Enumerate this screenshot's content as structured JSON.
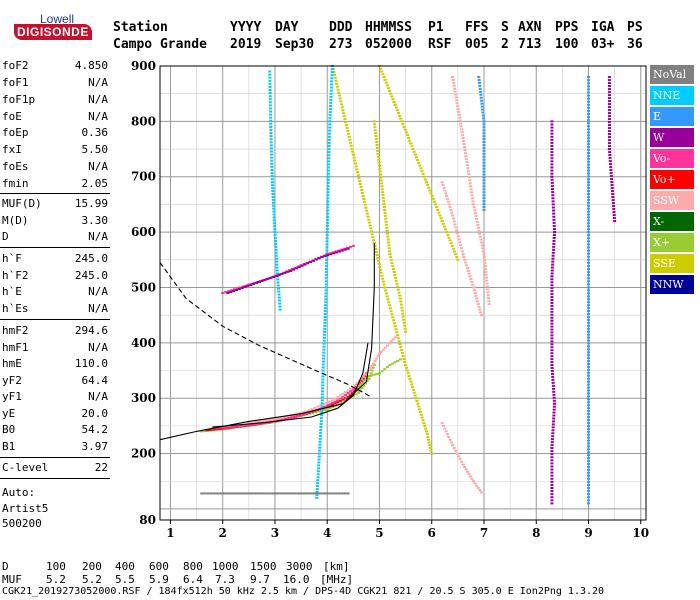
{
  "logo": {
    "top": "Lowell",
    "main": "DIGISONDE"
  },
  "header": {
    "col_labels": [
      "Station",
      "YYYY",
      "DAY",
      "DDD",
      "HHMMSS",
      "P1",
      "FFS",
      "S",
      "AXN",
      "PPS",
      "IGA",
      "PS"
    ],
    "col_values": [
      "Campo Grande",
      "2019",
      "Sep30",
      "273",
      "052000",
      "RSF",
      "005",
      "2",
      "713",
      "100",
      "03+",
      "36"
    ]
  },
  "params": [
    {
      "name": "foF2",
      "value": "4.850"
    },
    {
      "name": "foF1",
      "value": "N/A"
    },
    {
      "name": "foF1p",
      "value": "N/A"
    },
    {
      "name": "foE",
      "value": "N/A"
    },
    {
      "name": "foEp",
      "value": "0.36"
    },
    {
      "name": "fxI",
      "value": "5.50"
    },
    {
      "name": "foEs",
      "value": "N/A"
    },
    {
      "name": "fmin",
      "value": "2.05"
    },
    {
      "name": "MUF(D)",
      "value": "15.99"
    },
    {
      "name": "M(D)",
      "value": "3.30"
    },
    {
      "name": "D",
      "value": "N/A"
    },
    {
      "name": "h`F",
      "value": "245.0"
    },
    {
      "name": "h`F2",
      "value": "245.0"
    },
    {
      "name": "h`E",
      "value": "N/A"
    },
    {
      "name": "h`Es",
      "value": "N/A"
    },
    {
      "name": "hmF2",
      "value": "294.6"
    },
    {
      "name": "hmF1",
      "value": "N/A"
    },
    {
      "name": "hmE",
      "value": "110.0"
    },
    {
      "name": "yF2",
      "value": "64.4"
    },
    {
      "name": "yF1",
      "value": "N/A"
    },
    {
      "name": "yE",
      "value": "20.0"
    },
    {
      "name": "B0",
      "value": "54.2"
    },
    {
      "name": "B1",
      "value": "3.97"
    },
    {
      "name": "C-level",
      "value": "22"
    }
  ],
  "auto": {
    "line1": "Auto:",
    "line2": "Artist5",
    "line3": "500200"
  },
  "legend": [
    {
      "label": "NoVal",
      "color": "#808080"
    },
    {
      "label": "NNE",
      "color": "#00ccff"
    },
    {
      "label": "E",
      "color": "#3399ff"
    },
    {
      "label": "W",
      "color": "#990099"
    },
    {
      "label": "Vo-",
      "color": "#ff3399"
    },
    {
      "label": "Vo+",
      "color": "#ff0000"
    },
    {
      "label": "SSW",
      "color": "#ffaaaa"
    },
    {
      "label": "X-",
      "color": "#006600"
    },
    {
      "label": "X+",
      "color": "#99cc33"
    },
    {
      "label": "SSE",
      "color": "#cccc00"
    },
    {
      "label": "NNW",
      "color": "#000099"
    }
  ],
  "footer": {
    "d_label": "D",
    "d_values": [
      "100",
      "200",
      "400",
      "600",
      "800",
      "1000",
      "1500",
      "3000"
    ],
    "d_unit": "[km]",
    "muf_label": "MUF",
    "muf_values": [
      "5.2",
      "5.2",
      "5.5",
      "5.9",
      "6.4",
      "7.3",
      "9.7",
      "16.0"
    ],
    "muf_unit": "[MHz]",
    "info": "CGK21_2019273052000.RSF / 184fx512h 50 kHz 2.5 km / DPS-4D CGK21 821 / 20.5 S 305.0 E Ion2Png 1.3.20"
  },
  "chart_data": {
    "type": "scatter",
    "xlim": [
      0.8,
      10.1
    ],
    "ylim": [
      80,
      900
    ],
    "x_ticks": [
      1,
      2,
      3,
      4,
      5,
      6,
      7,
      8,
      9,
      10
    ],
    "y_ticks": [
      80,
      100,
      200,
      300,
      400,
      500,
      600,
      700,
      800,
      900
    ],
    "y_tick_labels": [
      "80",
      "200",
      "300",
      "400",
      "500",
      "600",
      "700",
      "800",
      "900"
    ],
    "grid": true,
    "legend_position": "right",
    "traces": [
      {
        "color_key": "X+",
        "points": [
          [
            1.6,
            240
          ],
          [
            2,
            244
          ],
          [
            2.5,
            250
          ],
          [
            3,
            257
          ],
          [
            3.5,
            268
          ],
          [
            4,
            280
          ],
          [
            4.3,
            292
          ],
          [
            4.6,
            310
          ],
          [
            4.8,
            335
          ],
          [
            4.9,
            360
          ]
        ]
      },
      {
        "color_key": "Vo+",
        "points": [
          [
            1.7,
            242
          ],
          [
            2.1,
            246
          ],
          [
            2.6,
            252
          ],
          [
            3.1,
            260
          ],
          [
            3.6,
            272
          ],
          [
            4.1,
            288
          ],
          [
            4.4,
            302
          ],
          [
            4.6,
            320
          ],
          [
            4.75,
            345
          ]
        ]
      },
      {
        "color_key": "Vo-",
        "points": [
          [
            1.8,
            245
          ],
          [
            2.3,
            249
          ],
          [
            2.9,
            256
          ],
          [
            3.4,
            266
          ],
          [
            3.9,
            282
          ],
          [
            4.2,
            296
          ],
          [
            4.5,
            316
          ],
          [
            4.7,
            338
          ]
        ]
      },
      {
        "color_key": "SSW",
        "points": [
          [
            2.5,
            255
          ],
          [
            3,
            262
          ],
          [
            3.6,
            276
          ],
          [
            4.1,
            296
          ],
          [
            4.5,
            320
          ],
          [
            4.8,
            350
          ],
          [
            5,
            380
          ],
          [
            5.3,
            410
          ]
        ]
      },
      {
        "color_key": "SSE",
        "points": [
          [
            4.1,
            900
          ],
          [
            4.3,
            820
          ],
          [
            4.5,
            740
          ],
          [
            4.7,
            660
          ],
          [
            4.9,
            580
          ],
          [
            5.1,
            500
          ],
          [
            5.3,
            430
          ],
          [
            5.5,
            360
          ],
          [
            5.7,
            300
          ],
          [
            5.9,
            240
          ],
          [
            6,
            200
          ]
        ]
      },
      {
        "color_key": "SSE",
        "points": [
          [
            5,
            900
          ],
          [
            5.3,
            830
          ],
          [
            5.6,
            760
          ],
          [
            5.9,
            690
          ],
          [
            6.2,
            620
          ],
          [
            6.5,
            550
          ]
        ]
      },
      {
        "color_key": "SSE",
        "points": [
          [
            4.9,
            800
          ],
          [
            5,
            720
          ],
          [
            5.1,
            640
          ],
          [
            5.2,
            560
          ],
          [
            5.4,
            480
          ],
          [
            5.5,
            420
          ]
        ]
      },
      {
        "color_key": "NNE",
        "points": [
          [
            4.1,
            900
          ],
          [
            4.05,
            800
          ],
          [
            4.02,
            700
          ],
          [
            4,
            600
          ],
          [
            3.98,
            500
          ],
          [
            3.95,
            420
          ],
          [
            3.92,
            350
          ],
          [
            3.9,
            280
          ],
          [
            3.85,
            200
          ],
          [
            3.8,
            120
          ]
        ]
      },
      {
        "color_key": "NNE",
        "points": [
          [
            2.9,
            890
          ],
          [
            2.92,
            790
          ],
          [
            2.95,
            690
          ],
          [
            3,
            600
          ],
          [
            3.05,
            520
          ],
          [
            3.1,
            460
          ]
        ]
      },
      {
        "color_key": "SSW",
        "points": [
          [
            6.4,
            880
          ],
          [
            6.6,
            770
          ],
          [
            6.8,
            650
          ],
          [
            7,
            560
          ],
          [
            7.1,
            470
          ]
        ]
      },
      {
        "color_key": "SSW",
        "points": [
          [
            6.2,
            690
          ],
          [
            6.4,
            630
          ],
          [
            6.6,
            560
          ],
          [
            6.8,
            500
          ],
          [
            6.95,
            450
          ]
        ]
      },
      {
        "color_key": "E",
        "points": [
          [
            6.9,
            880
          ],
          [
            7,
            800
          ],
          [
            7,
            720
          ],
          [
            7,
            640
          ]
        ]
      },
      {
        "color_key": "W",
        "points": [
          [
            8.3,
            800
          ],
          [
            8.3,
            700
          ],
          [
            8.35,
            600
          ],
          [
            8.3,
            520
          ],
          [
            8.3,
            440
          ],
          [
            8.3,
            360
          ],
          [
            8.35,
            290
          ],
          [
            8.3,
            210
          ],
          [
            8.3,
            110
          ]
        ]
      },
      {
        "color_key": "E",
        "points": [
          [
            9,
            880
          ],
          [
            9,
            780
          ],
          [
            9,
            690
          ],
          [
            9,
            600
          ],
          [
            9,
            500
          ],
          [
            9,
            420
          ],
          [
            9,
            330
          ],
          [
            9,
            250
          ],
          [
            9,
            160
          ],
          [
            9,
            110
          ]
        ]
      },
      {
        "color_key": "W",
        "points": [
          [
            9.4,
            880
          ],
          [
            9.4,
            750
          ],
          [
            9.5,
            620
          ]
        ]
      },
      {
        "color_key": "Vo-",
        "points": [
          [
            2,
            490
          ],
          [
            2.5,
            505
          ],
          [
            3,
            520
          ],
          [
            3.5,
            540
          ],
          [
            4,
            560
          ],
          [
            4.5,
            575
          ]
        ]
      },
      {
        "color_key": "W",
        "points": [
          [
            2.1,
            490
          ],
          [
            2.7,
            510
          ],
          [
            3.3,
            530
          ],
          [
            3.9,
            555
          ],
          [
            4.4,
            570
          ]
        ]
      },
      {
        "color_key": "SSW",
        "points": [
          [
            6.2,
            255
          ],
          [
            6.4,
            215
          ],
          [
            6.6,
            180
          ],
          [
            6.8,
            150
          ],
          [
            6.95,
            130
          ]
        ]
      },
      {
        "color_key": "NoVal",
        "points": [
          [
            1.6,
            128
          ],
          [
            2,
            128
          ],
          [
            2.5,
            128
          ],
          [
            3,
            128
          ],
          [
            3.5,
            128
          ],
          [
            4,
            128
          ],
          [
            4.4,
            128
          ]
        ]
      },
      {
        "color_key": "X+",
        "points": [
          [
            4.6,
            320
          ],
          [
            4.8,
            340
          ],
          [
            5,
            345
          ],
          [
            5.2,
            360
          ],
          [
            5.4,
            370
          ]
        ]
      }
    ],
    "curves": [
      {
        "style": "solid",
        "color": "#000000",
        "points": [
          [
            0.8,
            225
          ],
          [
            1.5,
            240
          ],
          [
            2.5,
            258
          ],
          [
            3.5,
            272
          ],
          [
            4.3,
            290
          ],
          [
            4.75,
            330
          ],
          [
            4.85,
            390
          ],
          [
            4.9,
            500
          ],
          [
            4.9,
            580
          ]
        ]
      },
      {
        "style": "solid",
        "color": "#000000",
        "points": [
          [
            1.8,
            248
          ],
          [
            2.8,
            256
          ],
          [
            3.7,
            266
          ],
          [
            4.2,
            282
          ],
          [
            4.5,
            305
          ],
          [
            4.68,
            345
          ],
          [
            4.78,
            400
          ]
        ]
      },
      {
        "style": "dashed",
        "color": "#000000",
        "points": [
          [
            0.8,
            545
          ],
          [
            1.3,
            480
          ],
          [
            2,
            430
          ],
          [
            2.7,
            395
          ],
          [
            3.3,
            370
          ],
          [
            3.9,
            345
          ],
          [
            4.4,
            325
          ],
          [
            4.85,
            302
          ]
        ]
      }
    ]
  }
}
